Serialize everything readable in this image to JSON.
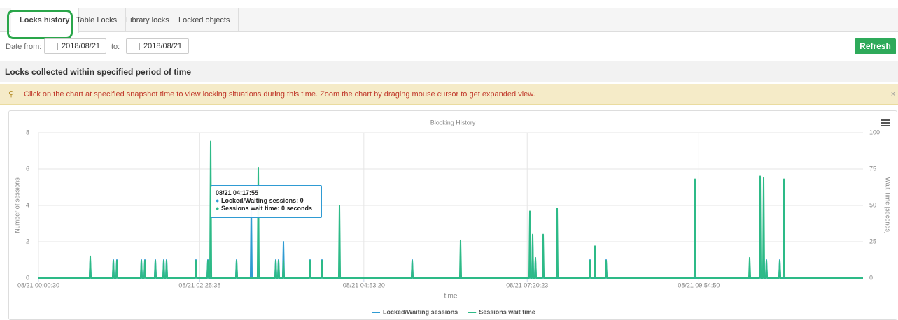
{
  "tabs": [
    "Locks history",
    "Table Locks",
    "Library locks",
    "Locked objects"
  ],
  "filters": {
    "from_label": "Date from:",
    "from_value": "2018/08/21",
    "to_label": "to:",
    "to_value": "2018/08/21",
    "refresh": "Refresh"
  },
  "section_title": "Locks collected within specified period of time",
  "alert": {
    "text": "Click on the chart at specified snapshot time to view locking situations during this time. Zoom the chart by draging mouse cursor to get expanded view.",
    "close": "×"
  },
  "tooltip": {
    "time": "08/21 04:17:55",
    "line1": "Locked/Waiting sessions: 0",
    "line2": "Sessions wait time: 0 seconds"
  },
  "chart_data": {
    "type": "line",
    "title": "Blocking History",
    "x_label": "time",
    "y_label": "Number of sessions",
    "y2_label": "Wait Time [seconds]",
    "xlim": [
      "08/21 00:00:30",
      "08/21 12:22:38"
    ],
    "xticks": [
      "08/21 00:00:30",
      "08/21 02:25:38",
      "08/21 04:53:20",
      "08/21 07:20:23",
      "08/21 09:54:50"
    ],
    "ylim": [
      0,
      8
    ],
    "yticks": [
      0,
      2,
      4,
      6,
      8
    ],
    "y2lim": [
      0,
      100
    ],
    "y2ticks": [
      0,
      25,
      50,
      75,
      100
    ],
    "grid": true,
    "x": [
      "08/21 00:00:30",
      "08/21 00:46:27",
      "08/21 00:47:07",
      "08/21 00:47:47",
      "08/21 01:07:15",
      "08/21 01:07:55",
      "08/21 01:08:35",
      "08/21 01:10:24",
      "08/21 01:11:04",
      "08/21 01:11:44",
      "08/21 01:32:27",
      "08/21 01:33:07",
      "08/21 01:33:47",
      "08/21 01:35:36",
      "08/21 01:36:16",
      "08/21 01:36:56",
      "08/21 01:45:03",
      "08/21 01:45:43",
      "08/21 01:46:23",
      "08/21 01:52:36",
      "08/21 01:53:16",
      "08/21 01:53:56",
      "08/21 01:55:07",
      "08/21 01:55:47",
      "08/21 01:56:27",
      "08/21 02:21:35",
      "08/21 02:22:15",
      "08/21 02:22:55",
      "08/21 02:32:18",
      "08/21 02:32:58",
      "08/21 02:33:38",
      "08/21 02:34:49",
      "08/21 02:35:29",
      "08/21 02:36:09",
      "08/21 02:58:07",
      "08/21 02:58:47",
      "08/21 02:59:27",
      "08/21 03:11:21",
      "08/21 03:12:01",
      "08/21 03:12:41",
      "08/21 03:17:39",
      "08/21 03:18:19",
      "08/21 03:18:59",
      "08/21 03:33:24",
      "08/21 03:34:04",
      "08/21 03:34:44",
      "08/21 03:35:55",
      "08/21 03:36:35",
      "08/21 03:37:15",
      "08/21 03:40:20",
      "08/21 03:41:00",
      "08/21 03:41:40",
      "08/21 04:04:16",
      "08/21 04:04:56",
      "08/21 04:05:36",
      "08/21 04:14:59",
      "08/21 04:15:39",
      "08/21 04:16:19",
      "08/21 04:30:44",
      "08/21 04:31:24",
      "08/21 04:32:04",
      "08/21 05:36:15",
      "08/21 05:36:55",
      "08/21 05:37:35",
      "08/21 06:19:43",
      "08/21 06:20:23",
      "08/21 06:21:03",
      "08/21 07:22:06",
      "08/21 07:22:46",
      "08/21 07:23:26",
      "08/21 07:24:37",
      "08/21 07:25:17",
      "08/21 07:25:57",
      "08/21 07:27:08",
      "08/21 07:27:48",
      "08/21 07:28:28",
      "08/21 07:34:04",
      "08/21 07:34:44",
      "08/21 07:35:24",
      "08/21 07:46:40",
      "08/21 07:47:20",
      "08/21 07:48:00",
      "08/21 08:16:16",
      "08/21 08:16:56",
      "08/21 08:17:36",
      "08/21 08:20:41",
      "08/21 08:21:21",
      "08/21 08:22:01",
      "08/21 08:30:46",
      "08/21 08:31:26",
      "08/21 08:32:06",
      "08/21 09:50:46",
      "08/21 09:51:26",
      "08/21 09:52:06",
      "08/21 10:39:55",
      "08/21 10:40:35",
      "08/21 10:41:15",
      "08/21 10:49:22",
      "08/21 10:50:02",
      "08/21 10:50:42",
      "08/21 10:52:31",
      "08/21 10:53:11",
      "08/21 10:53:51",
      "08/21 10:55:02",
      "08/21 10:55:42",
      "08/21 10:56:22",
      "08/21 11:07:00",
      "08/21 11:07:40",
      "08/21 11:08:20",
      "08/21 11:10:47",
      "08/21 11:11:27",
      "08/21 11:12:07",
      "08/21 12:22:38"
    ],
    "series": [
      {
        "name": "Locked/Waiting sessions",
        "color": "#2f9bd3",
        "values": [
          0,
          0,
          1,
          0,
          0,
          1,
          0,
          0,
          1,
          0,
          0,
          1,
          0,
          0,
          1,
          0,
          0,
          1,
          0,
          0,
          1,
          0,
          0,
          1,
          0,
          0,
          1,
          0,
          0,
          1,
          0,
          0,
          0,
          0,
          0,
          1,
          0,
          0,
          4,
          0,
          0,
          0,
          0,
          0,
          1,
          0,
          0,
          1,
          0,
          0,
          2,
          0,
          0,
          1,
          0,
          0,
          1,
          0,
          0,
          0,
          0,
          0,
          1,
          0,
          0,
          0,
          0,
          0,
          1,
          0,
          0,
          2,
          0,
          0,
          1,
          0,
          0,
          1,
          0,
          0,
          0,
          0,
          0,
          1,
          0,
          0,
          0,
          0,
          0,
          1,
          0,
          0,
          0,
          0,
          0,
          0,
          0,
          0,
          1,
          0,
          0,
          2,
          0,
          0,
          1,
          0,
          0,
          1,
          0,
          0,
          0,
          0,
          0
        ]
      },
      {
        "name": "Sessions wait time",
        "color": "#2dba87",
        "axis": "y2",
        "values": [
          0,
          0,
          15,
          0,
          0,
          12,
          0,
          0,
          12,
          0,
          0,
          12,
          0,
          0,
          12,
          0,
          0,
          12,
          0,
          0,
          12,
          0,
          0,
          12,
          0,
          0,
          12,
          0,
          0,
          12,
          0,
          0,
          94,
          0,
          0,
          12,
          0,
          0,
          0,
          0,
          0,
          76,
          0,
          0,
          12,
          0,
          0,
          12,
          0,
          0,
          12,
          0,
          0,
          12,
          0,
          0,
          12,
          0,
          0,
          50,
          0,
          0,
          12,
          0,
          0,
          26,
          0,
          0,
          46,
          0,
          0,
          30,
          0,
          0,
          14,
          0,
          0,
          30,
          0,
          0,
          48,
          0,
          0,
          12,
          0,
          0,
          22,
          0,
          0,
          12,
          0,
          0,
          68,
          0,
          0,
          14,
          0,
          0,
          70,
          0,
          0,
          69,
          0,
          0,
          12,
          0,
          0,
          12,
          0,
          0,
          68,
          0,
          0
        ]
      }
    ]
  }
}
